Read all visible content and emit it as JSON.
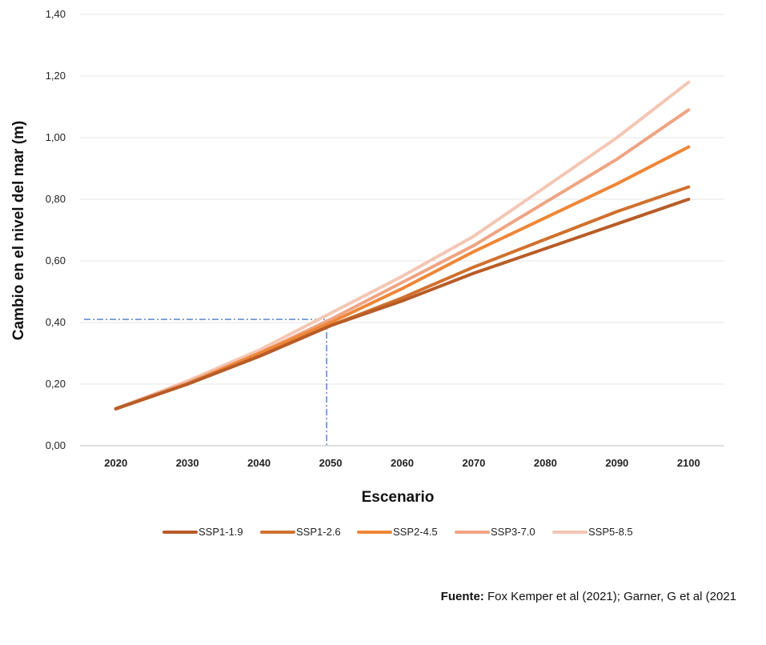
{
  "chart_data": {
    "type": "line",
    "title": "",
    "xlabel": "Escenario",
    "ylabel": "Cambio en el nivel del mar (m)",
    "ylim": [
      0,
      1.4
    ],
    "ytick_step": 0.2,
    "ytick_labels": [
      "0,00",
      "0,20",
      "0,40",
      "0,60",
      "0,80",
      "1,00",
      "1,20",
      "1,40"
    ],
    "categories": [
      "2020",
      "2030",
      "2040",
      "2050",
      "2060",
      "2070",
      "2080",
      "2090",
      "2100"
    ],
    "series": [
      {
        "name": "SSP1-1.9",
        "color": "#b85c27",
        "values": [
          0.12,
          0.2,
          0.29,
          0.39,
          0.47,
          0.56,
          0.64,
          0.72,
          0.8
        ]
      },
      {
        "name": "SSP1-2.6",
        "color": "#d0712f",
        "values": [
          0.12,
          0.2,
          0.29,
          0.39,
          0.48,
          0.58,
          0.67,
          0.76,
          0.84
        ]
      },
      {
        "name": "SSP2-4.5",
        "color": "#ef8637",
        "values": [
          0.12,
          0.2,
          0.3,
          0.4,
          0.51,
          0.63,
          0.74,
          0.85,
          0.97
        ]
      },
      {
        "name": "SSP3-7.0",
        "color": "#f0a482",
        "values": [
          0.12,
          0.205,
          0.3,
          0.41,
          0.53,
          0.65,
          0.79,
          0.93,
          1.09
        ]
      },
      {
        "name": "SSP5-8.5",
        "color": "#f4c6b4",
        "values": [
          0.12,
          0.21,
          0.31,
          0.43,
          0.55,
          0.68,
          0.84,
          1.0,
          1.18
        ]
      }
    ],
    "annotation": {
      "x": "2050",
      "y": 0.41,
      "style": "dash-dot",
      "color": "#3a6fc4"
    },
    "legend_position": "bottom",
    "grid": true
  },
  "source": {
    "label": "Fuente:",
    "text": " Fox Kemper et al (2021); Garner, G et al (2021"
  }
}
